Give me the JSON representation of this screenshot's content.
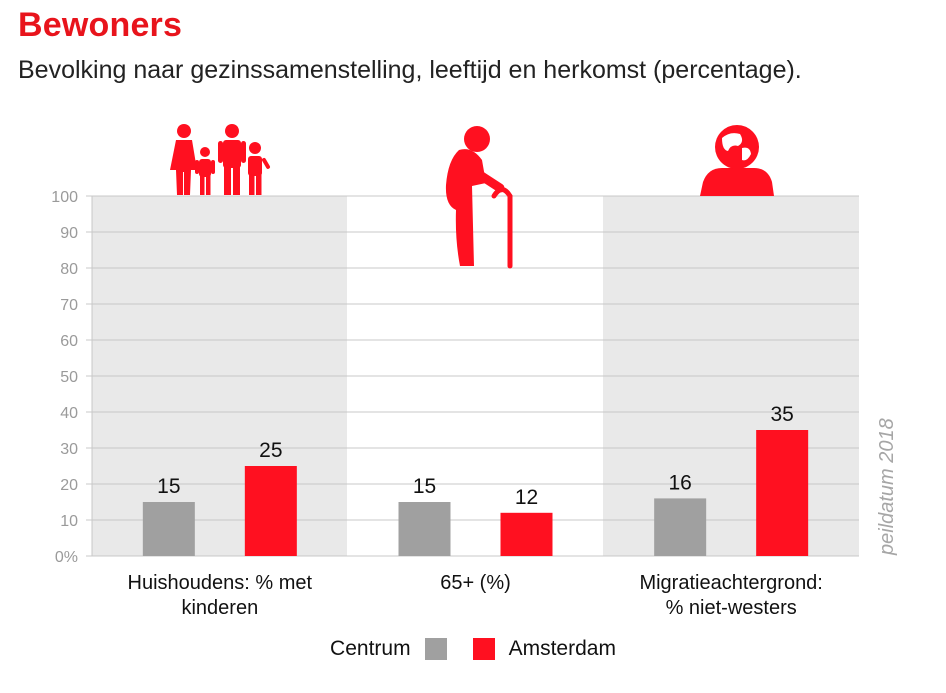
{
  "title": "Bewoners",
  "subtitle": "Bevolking naar gezinssamenstelling, leeftijd en herkomst (percentage).",
  "note": "peildatum 2018",
  "colors": {
    "Centrum": "#a0a0a0",
    "Amsterdam": "#ff1020",
    "accent": "#e8141c",
    "panel": "#e9e9e9",
    "icon": "#ff1020"
  },
  "icons": [
    "family-icon",
    "elderly-person-icon",
    "globe-person-icon"
  ],
  "chart_data": {
    "type": "bar",
    "title": "Bevolking naar gezinssamenstelling, leeftijd en herkomst (percentage).",
    "categories": [
      "Huishoudens: % met kinderen",
      "65+ (%)",
      "Migratieachtergrond: % niet-westers"
    ],
    "category_lines": [
      [
        "Huishoudens: % met",
        "kinderen"
      ],
      [
        "65+ (%)"
      ],
      [
        "Migratieachtergrond:",
        "% niet-westers"
      ]
    ],
    "series": [
      {
        "name": "Centrum",
        "values": [
          15,
          15,
          16
        ],
        "labels": [
          "15",
          "15",
          "16"
        ]
      },
      {
        "name": "Amsterdam",
        "values": [
          25,
          12,
          35
        ],
        "labels": [
          "25",
          "12",
          "35"
        ]
      }
    ],
    "ylim": [
      0,
      100
    ],
    "yticks": [
      "0%",
      "10",
      "20",
      "30",
      "40",
      "50",
      "60",
      "70",
      "80",
      "90",
      "100"
    ],
    "grid": true,
    "legend": "bottom-center"
  }
}
